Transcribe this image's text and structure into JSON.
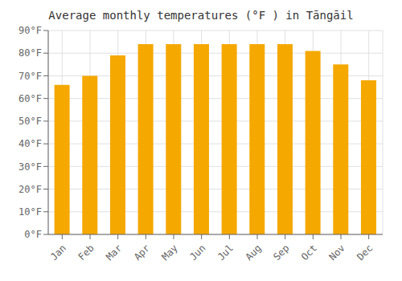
{
  "chart_data": {
    "type": "bar",
    "title": "Average monthly temperatures (°F ) in Tāngāil",
    "categories": [
      "Jan",
      "Feb",
      "Mar",
      "Apr",
      "May",
      "Jun",
      "Jul",
      "Aug",
      "Sep",
      "Oct",
      "Nov",
      "Dec"
    ],
    "values": [
      66,
      70,
      79,
      84,
      84,
      84,
      84,
      84,
      84,
      81,
      75,
      68
    ],
    "color": "#F5A800",
    "ylim": [
      0,
      90
    ],
    "yticks": [
      {
        "value": 0,
        "label": "0°F"
      },
      {
        "value": 10,
        "label": "10°F"
      },
      {
        "value": 20,
        "label": "20°F"
      },
      {
        "value": 30,
        "label": "30°F"
      },
      {
        "value": 40,
        "label": "40°F"
      },
      {
        "value": 50,
        "label": "50°F"
      },
      {
        "value": 60,
        "label": "60°F"
      },
      {
        "value": 70,
        "label": "70°F"
      },
      {
        "value": 80,
        "label": "80°F"
      },
      {
        "value": 90,
        "label": "90°F"
      }
    ],
    "grid": true
  }
}
